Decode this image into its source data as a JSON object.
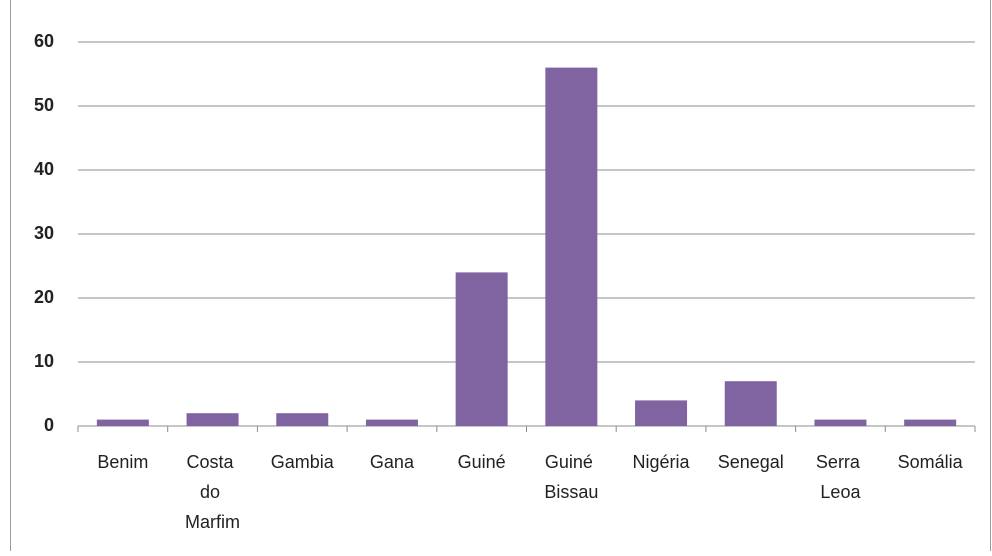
{
  "chart_data": {
    "type": "bar",
    "categories": [
      "Benim",
      "Costa do Marfim",
      "Gambia",
      "Gana",
      "Guiné",
      "Guiné Bissau",
      "Nigéria",
      "Senegal",
      "Serra Leoa",
      "Somália"
    ],
    "values": [
      1,
      2,
      2,
      1,
      24,
      56,
      4,
      7,
      1,
      1
    ],
    "color": "#8064a2",
    "ylim": [
      0,
      60
    ],
    "yticks": [
      0,
      10,
      20,
      30,
      40,
      50,
      60
    ],
    "grid": true
  }
}
